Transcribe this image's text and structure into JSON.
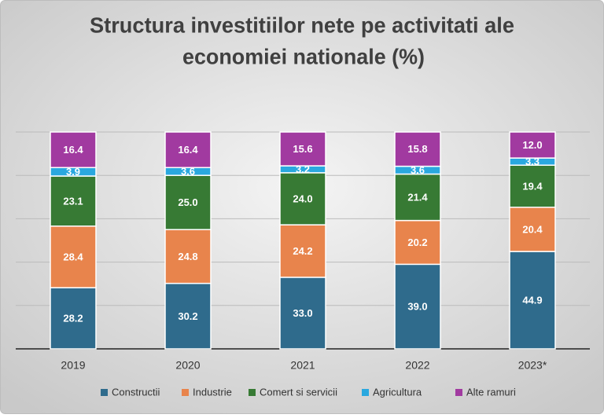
{
  "chart_data": {
    "type": "stacked_bar",
    "title": [
      "Structura investitiilor nete pe activitati ale",
      "economiei nationale (%)"
    ],
    "categories": [
      "2019",
      "2020",
      "2021",
      "2022",
      "2023*"
    ],
    "series": [
      {
        "name": "Constructii",
        "color": "#2f6b8c",
        "values": [
          28.2,
          30.2,
          33.0,
          39.0,
          44.9
        ]
      },
      {
        "name": "Industrie",
        "color": "#e8844c",
        "values": [
          28.4,
          24.8,
          24.2,
          20.2,
          20.4
        ]
      },
      {
        "name": "Comert si servicii",
        "color": "#377a34",
        "values": [
          23.1,
          25.0,
          24.0,
          21.4,
          19.4
        ]
      },
      {
        "name": "Agricultura",
        "color": "#2aa8df",
        "values": [
          3.9,
          3.6,
          3.2,
          3.6,
          3.3
        ]
      },
      {
        "name": "Alte ramuri",
        "color": "#a13aa0",
        "values": [
          16.4,
          16.4,
          15.6,
          15.8,
          12.0
        ]
      }
    ],
    "value_labels": [
      [
        "28.2",
        "30.2",
        "33.0",
        "39.0",
        "44.9"
      ],
      [
        "28.4",
        "24.8",
        "24.2",
        "20.2",
        "20.4"
      ],
      [
        "23.1",
        "25.0",
        "24.0",
        "21.4",
        "19.4"
      ],
      [
        "3.9",
        "3.6",
        "3.2",
        "3.6",
        "3.3"
      ],
      [
        "16.4",
        "16.4",
        "15.6",
        "15.8",
        "12.0"
      ]
    ],
    "ylim": [
      0,
      100
    ],
    "yticks": [
      0,
      20,
      40,
      60,
      80,
      100
    ],
    "grid": true,
    "legend": "bottom"
  }
}
